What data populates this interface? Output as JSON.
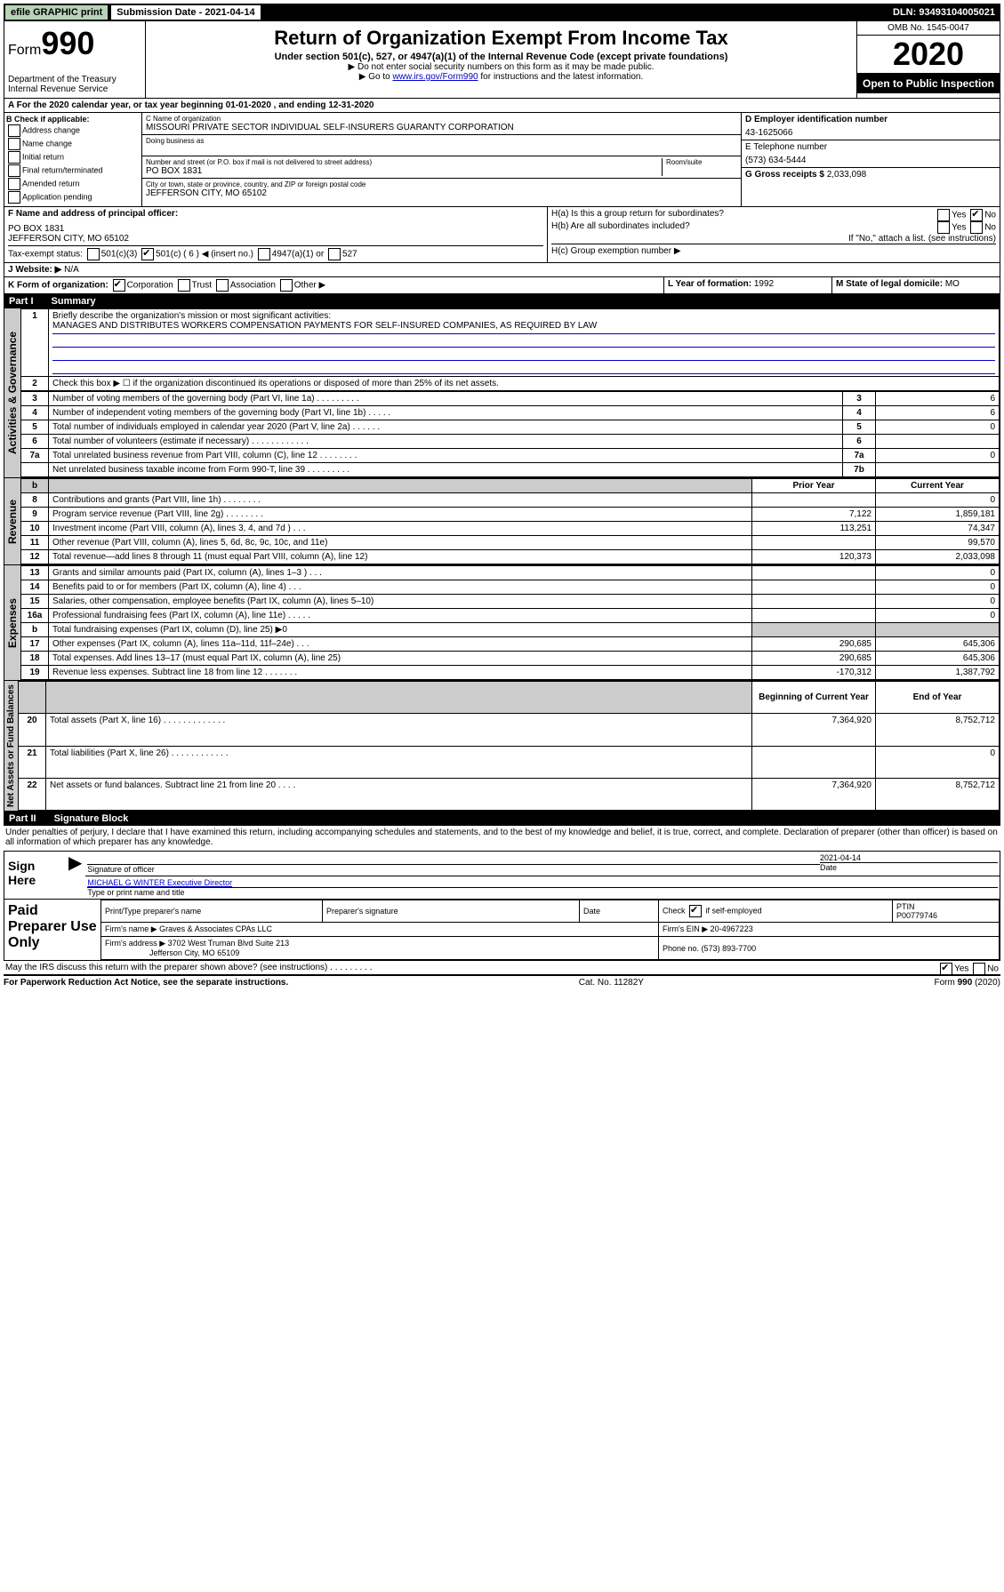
{
  "topbar": {
    "efile": "efile GRAPHIC print",
    "sub_label": "Submission Date - 2021-04-14",
    "dln": "DLN: 93493104005021"
  },
  "header": {
    "form_prefix": "Form",
    "form_num": "990",
    "dept": "Department of the Treasury\nInternal Revenue Service",
    "title": "Return of Organization Exempt From Income Tax",
    "subtitle": "Under section 501(c), 527, or 4947(a)(1) of the Internal Revenue Code (except private foundations)",
    "note1": "▶ Do not enter social security numbers on this form as it may be made public.",
    "note2_pre": "▶ Go to ",
    "note2_link": "www.irs.gov/Form990",
    "note2_post": " for instructions and the latest information.",
    "omb": "OMB No. 1545-0047",
    "year": "2020",
    "open": "Open to Public Inspection"
  },
  "row_a": "A For the 2020 calendar year, or tax year beginning 01-01-2020    , and ending 12-31-2020",
  "box_b": {
    "heading": "B Check if applicable:",
    "opts": [
      "Address change",
      "Name change",
      "Initial return",
      "Final return/terminated",
      "Amended return",
      "Application pending"
    ]
  },
  "box_c": {
    "name_label": "C Name of organization",
    "name": "MISSOURI PRIVATE SECTOR INDIVIDUAL SELF-INSURERS GUARANTY CORPORATION",
    "dba_label": "Doing business as",
    "addr_label": "Number and street (or P.O. box if mail is not delivered to street address)",
    "room_label": "Room/suite",
    "addr": "PO BOX 1831",
    "city_label": "City or town, state or province, country, and ZIP or foreign postal code",
    "city": "JEFFERSON CITY, MO  65102"
  },
  "box_d": {
    "label": "D Employer identification number",
    "value": "43-1625066"
  },
  "box_e": {
    "label": "E Telephone number",
    "value": "(573) 634-5444"
  },
  "box_g": {
    "label": "G Gross receipts $",
    "value": "2,033,098"
  },
  "box_f": {
    "label": "F Name and address of principal officer:",
    "addr1": "PO BOX 1831",
    "addr2": "JEFFERSON CITY, MO  65102"
  },
  "box_h": {
    "a_label": "H(a)  Is this a group return for subordinates?",
    "b_label": "H(b)  Are all subordinates included?",
    "note": "If \"No,\" attach a list. (see instructions)",
    "c_label": "H(c)  Group exemption number ▶",
    "yes": "Yes",
    "no": "No"
  },
  "tax_status": {
    "label": "Tax-exempt status:",
    "501c3": "501(c)(3)",
    "501c": "501(c) ( 6 ) ◀ (insert no.)",
    "4947": "4947(a)(1) or",
    "527": "527"
  },
  "box_j": {
    "label": "J Website: ▶",
    "value": "N/A"
  },
  "box_k": {
    "label": "K Form of organization:",
    "corp": "Corporation",
    "trust": "Trust",
    "assoc": "Association",
    "other": "Other ▶"
  },
  "box_l": {
    "label": "L Year of formation:",
    "value": "1992"
  },
  "box_m": {
    "label": "M State of legal domicile:",
    "value": "MO"
  },
  "part1": {
    "num": "Part I",
    "title": "Summary"
  },
  "part2": {
    "num": "Part II",
    "title": "Signature Block"
  },
  "s_activities": "Activities & Governance",
  "s_revenue": "Revenue",
  "s_expenses": "Expenses",
  "s_netassets": "Net Assets or Fund Balances",
  "line1": {
    "num": "1",
    "label": "Briefly describe the organization's mission or most significant activities:",
    "text": "MANAGES AND DISTRIBUTES WORKERS COMPENSATION PAYMENTS FOR SELF-INSURED COMPANIES, AS REQUIRED BY LAW"
  },
  "line2": {
    "num": "2",
    "label": "Check this box ▶ ☐ if the organization discontinued its operations or disposed of more than 25% of its net assets."
  },
  "lines_ag": [
    {
      "n": "3",
      "d": "Number of voting members of the governing body (Part VI, line 1a)  .   .   .   .   .   .   .   .   .",
      "b": "3",
      "v": "6"
    },
    {
      "n": "4",
      "d": "Number of independent voting members of the governing body (Part VI, line 1b)   .   .   .   .   .",
      "b": "4",
      "v": "6"
    },
    {
      "n": "5",
      "d": "Total number of individuals employed in calendar year 2020 (Part V, line 2a)   .   .   .   .   .   .",
      "b": "5",
      "v": "0"
    },
    {
      "n": "6",
      "d": "Total number of volunteers (estimate if necessary)   .   .   .   .   .   .   .   .   .   .   .   .",
      "b": "6",
      "v": ""
    },
    {
      "n": "7a",
      "d": "Total unrelated business revenue from Part VIII, column (C), line 12   .   .   .   .   .   .   .   .",
      "b": "7a",
      "v": "0"
    },
    {
      "n": "",
      "d": "Net unrelated business taxable income from Form 990-T, line 39   .   .   .   .   .   .   .   .   .",
      "b": "7b",
      "v": ""
    }
  ],
  "pycy_header": {
    "b": "b",
    "prior": "Prior Year",
    "curr": "Current Year"
  },
  "lines_rev": [
    {
      "n": "8",
      "d": "Contributions and grants (Part VIII, line 1h)   .   .   .   .   .   .   .   .",
      "p": "",
      "c": "0"
    },
    {
      "n": "9",
      "d": "Program service revenue (Part VIII, line 2g)   .   .   .   .   .   .   .   .",
      "p": "7,122",
      "c": "1,859,181"
    },
    {
      "n": "10",
      "d": "Investment income (Part VIII, column (A), lines 3, 4, and 7d )   .   .   .",
      "p": "113,251",
      "c": "74,347"
    },
    {
      "n": "11",
      "d": "Other revenue (Part VIII, column (A), lines 5, 6d, 8c, 9c, 10c, and 11e)",
      "p": "",
      "c": "99,570"
    },
    {
      "n": "12",
      "d": "Total revenue—add lines 8 through 11 (must equal Part VIII, column (A), line 12)",
      "p": "120,373",
      "c": "2,033,098"
    }
  ],
  "lines_exp": [
    {
      "n": "13",
      "d": "Grants and similar amounts paid (Part IX, column (A), lines 1–3 )   .   .   .",
      "p": "",
      "c": "0"
    },
    {
      "n": "14",
      "d": "Benefits paid to or for members (Part IX, column (A), line 4)   .   .   .",
      "p": "",
      "c": "0"
    },
    {
      "n": "15",
      "d": "Salaries, other compensation, employee benefits (Part IX, column (A), lines 5–10)",
      "p": "",
      "c": "0"
    },
    {
      "n": "16a",
      "d": "Professional fundraising fees (Part IX, column (A), line 11e)   .   .   .   .   .",
      "p": "",
      "c": "0"
    },
    {
      "n": "b",
      "d": "Total fundraising expenses (Part IX, column (D), line 25) ▶0",
      "p": "grey",
      "c": "grey"
    },
    {
      "n": "17",
      "d": "Other expenses (Part IX, column (A), lines 11a–11d, 11f–24e)   .   .   .",
      "p": "290,685",
      "c": "645,306"
    },
    {
      "n": "18",
      "d": "Total expenses. Add lines 13–17 (must equal Part IX, column (A), line 25)",
      "p": "290,685",
      "c": "645,306"
    },
    {
      "n": "19",
      "d": "Revenue less expenses. Subtract line 18 from line 12   .   .   .   .   .   .   .",
      "p": "-170,312",
      "c": "1,387,792"
    }
  ],
  "na_header": {
    "prior": "Beginning of Current Year",
    "curr": "End of Year"
  },
  "lines_na": [
    {
      "n": "20",
      "d": "Total assets (Part X, line 16)   .   .   .   .   .   .   .   .   .   .   .   .   .",
      "p": "7,364,920",
      "c": "8,752,712"
    },
    {
      "n": "21",
      "d": "Total liabilities (Part X, line 26)   .   .   .   .   .   .   .   .   .   .   .   .",
      "p": "",
      "c": "0"
    },
    {
      "n": "22",
      "d": "Net assets or fund balances. Subtract line 21 from line 20   .   .   .   .",
      "p": "7,364,920",
      "c": "8,752,712"
    }
  ],
  "perjury": "Under penalties of perjury, I declare that I have examined this return, including accompanying schedules and statements, and to the best of my knowledge and belief, it is true, correct, and complete. Declaration of preparer (other than officer) is based on all information of which preparer has any knowledge.",
  "sign": {
    "label": "Sign Here",
    "sig_officer": "Signature of officer",
    "date": "2021-04-14",
    "date_label": "Date",
    "name": "MICHAEL G WINTER  Executive Director",
    "name_label": "Type or print name and title"
  },
  "paid": {
    "label": "Paid Preparer Use Only",
    "h1": "Print/Type preparer's name",
    "h2": "Preparer's signature",
    "h3": "Date",
    "h4_check": "Check",
    "h4_if": "if self-employed",
    "h5": "PTIN",
    "ptin": "P00779746",
    "firm_name_label": "Firm's name     ▶",
    "firm_name": "Graves & Associates CPAs LLC",
    "firm_ein_label": "Firm's EIN ▶",
    "firm_ein": "20-4967223",
    "firm_addr_label": "Firm's address ▶",
    "firm_addr1": "3702 West Truman Blvd Suite 213",
    "firm_addr2": "Jefferson City, MO  65109",
    "phone_label": "Phone no.",
    "phone": "(573) 893-7700"
  },
  "discuss": "May the IRS discuss this return with the preparer shown above? (see instructions)   .   .   .   .   .   .   .   .   .",
  "footer": {
    "left": "For Paperwork Reduction Act Notice, see the separate instructions.",
    "center": "Cat. No. 11282Y",
    "right": "Form 990 (2020)"
  }
}
